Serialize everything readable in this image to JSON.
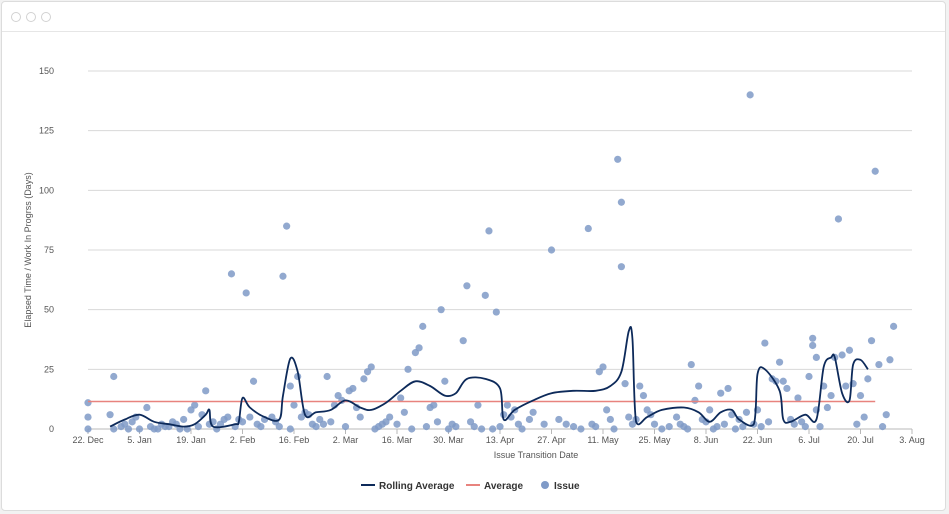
{
  "colors": {
    "rolling": "#0d2a5a",
    "average": "#e8837e",
    "issue": "#7f9ac7",
    "grid": "#d8d8d8"
  },
  "chart_data": {
    "type": "scatter",
    "xlabel": "Issue Transition Date",
    "ylabel": "Elapsed Time / Work In Progrss (Days)",
    "x_ticks": [
      "22. Dec",
      "5. Jan",
      "19. Jan",
      "2. Feb",
      "16. Feb",
      "2. Mar",
      "16. Mar",
      "30. Mar",
      "13. Apr",
      "27. Apr",
      "11. May",
      "25. May",
      "8. Jun",
      "22. Jun",
      "6. Jul",
      "20. Jul",
      "3. Aug"
    ],
    "x_tick_days": [
      0,
      14,
      28,
      42,
      56,
      70,
      84,
      98,
      112,
      126,
      140,
      154,
      168,
      182,
      196,
      210,
      224
    ],
    "xlim_days": [
      0,
      224
    ],
    "y_ticks": [
      "0",
      "25",
      "50",
      "75",
      "100",
      "125",
      "150"
    ],
    "ylim": [
      0,
      150
    ],
    "grid": true,
    "legend_position": "bottom-center",
    "legend": {
      "rolling": "Rolling Average",
      "average": "Average",
      "issue": "Issue"
    },
    "average_value": 11.5,
    "rolling_average": [
      [
        6,
        1
      ],
      [
        10,
        4
      ],
      [
        14,
        6
      ],
      [
        18,
        3
      ],
      [
        22,
        2
      ],
      [
        26,
        1
      ],
      [
        29,
        2
      ],
      [
        32,
        6
      ],
      [
        33,
        8
      ],
      [
        34,
        1
      ],
      [
        40,
        2
      ],
      [
        41,
        3
      ],
      [
        42,
        13
      ],
      [
        44,
        9
      ],
      [
        48,
        5
      ],
      [
        52,
        4
      ],
      [
        53,
        14
      ],
      [
        55,
        29.5
      ],
      [
        57,
        24
      ],
      [
        59,
        6
      ],
      [
        62,
        7
      ],
      [
        66,
        8
      ],
      [
        70,
        12
      ],
      [
        74,
        9
      ],
      [
        77,
        8
      ],
      [
        81,
        11
      ],
      [
        85,
        16
      ],
      [
        89,
        20
      ],
      [
        93,
        18
      ],
      [
        97,
        14
      ],
      [
        100,
        15
      ],
      [
        103,
        21
      ],
      [
        108,
        21
      ],
      [
        112,
        17
      ],
      [
        113,
        4
      ],
      [
        116,
        8
      ],
      [
        121,
        12
      ],
      [
        126,
        15
      ],
      [
        132,
        16
      ],
      [
        138,
        16
      ],
      [
        142,
        18
      ],
      [
        145,
        24
      ],
      [
        147,
        41
      ],
      [
        148,
        38
      ],
      [
        149,
        3
      ],
      [
        152,
        5
      ],
      [
        156,
        8
      ],
      [
        162,
        9
      ],
      [
        166,
        7
      ],
      [
        169,
        3
      ],
      [
        172,
        7
      ],
      [
        175,
        8
      ],
      [
        177,
        4
      ],
      [
        181,
        2
      ],
      [
        182,
        23
      ],
      [
        184,
        25
      ],
      [
        188,
        16
      ],
      [
        189,
        4
      ],
      [
        191,
        3
      ],
      [
        195,
        6
      ],
      [
        198,
        4
      ],
      [
        200,
        26
      ],
      [
        202,
        30
      ],
      [
        203,
        30
      ],
      [
        205,
        15
      ],
      [
        207,
        12
      ],
      [
        208,
        27
      ],
      [
        210,
        29
      ],
      [
        212,
        25
      ]
    ],
    "issues": [
      [
        0,
        0
      ],
      [
        0,
        5
      ],
      [
        0,
        11
      ],
      [
        6,
        6
      ],
      [
        7,
        22
      ],
      [
        7,
        0
      ],
      [
        9,
        1
      ],
      [
        10,
        2
      ],
      [
        11,
        0
      ],
      [
        12,
        3
      ],
      [
        13,
        5
      ],
      [
        14,
        0
      ],
      [
        16,
        9
      ],
      [
        17,
        1
      ],
      [
        18,
        0
      ],
      [
        19,
        0
      ],
      [
        20,
        2
      ],
      [
        21,
        1
      ],
      [
        22,
        1
      ],
      [
        23,
        3
      ],
      [
        24,
        2
      ],
      [
        25,
        0
      ],
      [
        26,
        4
      ],
      [
        27,
        0
      ],
      [
        28,
        8
      ],
      [
        29,
        10
      ],
      [
        30,
        1
      ],
      [
        31,
        6
      ],
      [
        32,
        16
      ],
      [
        33,
        2
      ],
      [
        34,
        3
      ],
      [
        35,
        0
      ],
      [
        36,
        2
      ],
      [
        37,
        4
      ],
      [
        38,
        5
      ],
      [
        39,
        65
      ],
      [
        40,
        1
      ],
      [
        41,
        4
      ],
      [
        42,
        3
      ],
      [
        43,
        57
      ],
      [
        44,
        5
      ],
      [
        45,
        20
      ],
      [
        46,
        2
      ],
      [
        47,
        1
      ],
      [
        48,
        4
      ],
      [
        50,
        5
      ],
      [
        51,
        3
      ],
      [
        52,
        1
      ],
      [
        53,
        64
      ],
      [
        54,
        85
      ],
      [
        55,
        18
      ],
      [
        55,
        0
      ],
      [
        56,
        10
      ],
      [
        57,
        22
      ],
      [
        58,
        5
      ],
      [
        59,
        7
      ],
      [
        60,
        6
      ],
      [
        61,
        2
      ],
      [
        62,
        1
      ],
      [
        63,
        4
      ],
      [
        64,
        2
      ],
      [
        65,
        22
      ],
      [
        66,
        3
      ],
      [
        67,
        10
      ],
      [
        68,
        14
      ],
      [
        69,
        12
      ],
      [
        70,
        1
      ],
      [
        71,
        16
      ],
      [
        72,
        17
      ],
      [
        73,
        9
      ],
      [
        74,
        5
      ],
      [
        75,
        21
      ],
      [
        76,
        24
      ],
      [
        77,
        26
      ],
      [
        78,
        0
      ],
      [
        79,
        1
      ],
      [
        80,
        2
      ],
      [
        81,
        3
      ],
      [
        82,
        5
      ],
      [
        84,
        2
      ],
      [
        85,
        13
      ],
      [
        86,
        7
      ],
      [
        87,
        25
      ],
      [
        88,
        0
      ],
      [
        89,
        32
      ],
      [
        90,
        34
      ],
      [
        91,
        43
      ],
      [
        92,
        1
      ],
      [
        93,
        9
      ],
      [
        94,
        10
      ],
      [
        95,
        3
      ],
      [
        96,
        50
      ],
      [
        97,
        20
      ],
      [
        98,
        0
      ],
      [
        99,
        2
      ],
      [
        100,
        1
      ],
      [
        102,
        37
      ],
      [
        103,
        60
      ],
      [
        104,
        3
      ],
      [
        105,
        1
      ],
      [
        106,
        10
      ],
      [
        107,
        0
      ],
      [
        108,
        56
      ],
      [
        109,
        83
      ],
      [
        110,
        0
      ],
      [
        111,
        49
      ],
      [
        112,
        1
      ],
      [
        113,
        6
      ],
      [
        114,
        10
      ],
      [
        115,
        5
      ],
      [
        116,
        8
      ],
      [
        117,
        2
      ],
      [
        118,
        0
      ],
      [
        120,
        4
      ],
      [
        121,
        7
      ],
      [
        124,
        2
      ],
      [
        126,
        75
      ],
      [
        128,
        4
      ],
      [
        130,
        2
      ],
      [
        132,
        1
      ],
      [
        134,
        0
      ],
      [
        136,
        84
      ],
      [
        137,
        2
      ],
      [
        138,
        1
      ],
      [
        139,
        24
      ],
      [
        140,
        26
      ],
      [
        141,
        8
      ],
      [
        142,
        4
      ],
      [
        143,
        0
      ],
      [
        144,
        113
      ],
      [
        145,
        95
      ],
      [
        145,
        68
      ],
      [
        146,
        19
      ],
      [
        147,
        5
      ],
      [
        148,
        2
      ],
      [
        149,
        4
      ],
      [
        150,
        18
      ],
      [
        151,
        14
      ],
      [
        152,
        8
      ],
      [
        153,
        6
      ],
      [
        154,
        2
      ],
      [
        156,
        0
      ],
      [
        158,
        1
      ],
      [
        160,
        5
      ],
      [
        161,
        2
      ],
      [
        162,
        1
      ],
      [
        163,
        0
      ],
      [
        164,
        27
      ],
      [
        165,
        12
      ],
      [
        166,
        18
      ],
      [
        167,
        4
      ],
      [
        168,
        3
      ],
      [
        169,
        8
      ],
      [
        170,
        0
      ],
      [
        171,
        1
      ],
      [
        172,
        15
      ],
      [
        173,
        2
      ],
      [
        174,
        17
      ],
      [
        175,
        6
      ],
      [
        176,
        0
      ],
      [
        177,
        4
      ],
      [
        178,
        1
      ],
      [
        179,
        7
      ],
      [
        180,
        140
      ],
      [
        181,
        2
      ],
      [
        182,
        8
      ],
      [
        183,
        1
      ],
      [
        184,
        36
      ],
      [
        185,
        3
      ],
      [
        186,
        21
      ],
      [
        187,
        20
      ],
      [
        188,
        28
      ],
      [
        189,
        20
      ],
      [
        190,
        17
      ],
      [
        191,
        4
      ],
      [
        192,
        2
      ],
      [
        193,
        13
      ],
      [
        194,
        3
      ],
      [
        195,
        1
      ],
      [
        196,
        22
      ],
      [
        197,
        35
      ],
      [
        197,
        38
      ],
      [
        198,
        30
      ],
      [
        198,
        8
      ],
      [
        199,
        1
      ],
      [
        200,
        18
      ],
      [
        201,
        9
      ],
      [
        202,
        14
      ],
      [
        203,
        30
      ],
      [
        204,
        88
      ],
      [
        205,
        31
      ],
      [
        206,
        18
      ],
      [
        207,
        33
      ],
      [
        208,
        19
      ],
      [
        209,
        2
      ],
      [
        210,
        14
      ],
      [
        211,
        5
      ],
      [
        212,
        21
      ],
      [
        213,
        37
      ],
      [
        214,
        108
      ],
      [
        215,
        27
      ],
      [
        216,
        1
      ],
      [
        218,
        29
      ],
      [
        219,
        43
      ],
      [
        217,
        6
      ]
    ]
  }
}
